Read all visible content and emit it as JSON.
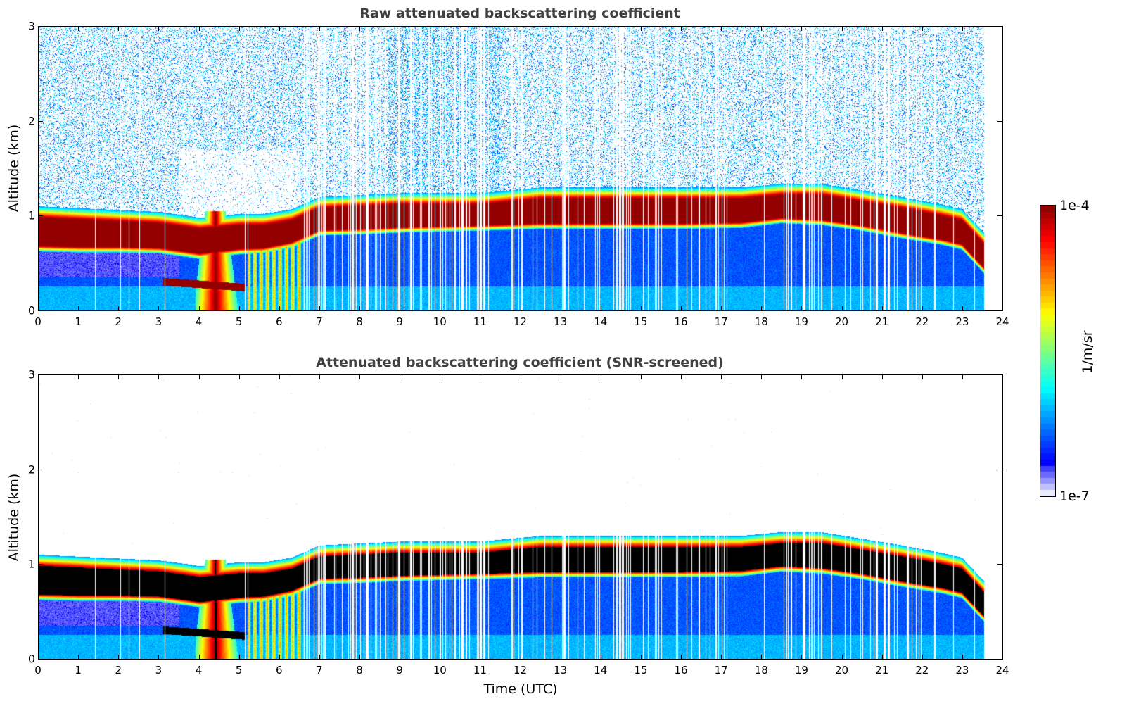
{
  "chart_data": [
    {
      "type": "heatmap",
      "title": "Raw attenuated backscattering coefficient",
      "xlabel": "",
      "ylabel": "Altitude (km)",
      "xlim": [
        0,
        24
      ],
      "ylim": [
        0,
        3
      ],
      "xticks": [
        "0",
        "1",
        "2",
        "3",
        "4",
        "5",
        "6",
        "7",
        "8",
        "9",
        "10",
        "11",
        "12",
        "13",
        "14",
        "15",
        "16",
        "17",
        "18",
        "19",
        "20",
        "21",
        "22",
        "23",
        "24"
      ],
      "yticks": [
        "0",
        "1",
        "2",
        "3"
      ],
      "screened": false,
      "data_end_hour": 23.55,
      "layer_profile": {
        "hours": [
          0,
          1,
          2,
          3,
          3.7,
          4.0,
          5.0,
          5.6,
          6.3,
          7.0,
          8.0,
          9.0,
          11.0,
          12.5,
          14.0,
          16.0,
          17.5,
          18.5,
          19.5,
          20.5,
          21.5,
          22.5,
          23.0,
          23.55
        ],
        "top_km": [
          0.98,
          0.96,
          0.94,
          0.92,
          0.88,
          0.86,
          0.9,
          0.9,
          0.95,
          1.08,
          1.1,
          1.12,
          1.12,
          1.18,
          1.18,
          1.18,
          1.18,
          1.22,
          1.22,
          1.15,
          1.08,
          1.0,
          0.95,
          0.7
        ],
        "bottom_km": [
          0.68,
          0.67,
          0.67,
          0.66,
          0.62,
          0.6,
          0.65,
          0.66,
          0.72,
          0.85,
          0.86,
          0.88,
          0.9,
          0.92,
          0.92,
          0.92,
          0.93,
          0.98,
          0.96,
          0.9,
          0.82,
          0.75,
          0.7,
          0.45
        ]
      },
      "features": [
        {
          "name": "low-aerosol-plume",
          "hour_start": 3.1,
          "hour_end": 5.15,
          "altitude_km": 0.27
        },
        {
          "name": "convective-plume",
          "hour_start": 3.9,
          "hour_end": 5.1,
          "altitude_top_km": 1.05
        }
      ]
    },
    {
      "type": "heatmap",
      "title": "Attenuated backscattering coefficient (SNR-screened)",
      "xlabel": "Time (UTC)",
      "ylabel": "Altitude (km)",
      "xlim": [
        0,
        24
      ],
      "ylim": [
        0,
        3
      ],
      "xticks": [
        "0",
        "1",
        "2",
        "3",
        "4",
        "5",
        "6",
        "7",
        "8",
        "9",
        "10",
        "11",
        "12",
        "13",
        "14",
        "15",
        "16",
        "17",
        "18",
        "19",
        "20",
        "21",
        "22",
        "23",
        "24"
      ],
      "yticks": [
        "0",
        "1",
        "2",
        "3"
      ],
      "screened": true,
      "data_end_hour": 23.55
    }
  ],
  "colorbar": {
    "label": "1/m/sr",
    "max_label": "1e-4",
    "min_label": "1e-7",
    "vmin": 1e-07,
    "vmax": 0.0001,
    "colormap": "jet-with-white-low"
  }
}
